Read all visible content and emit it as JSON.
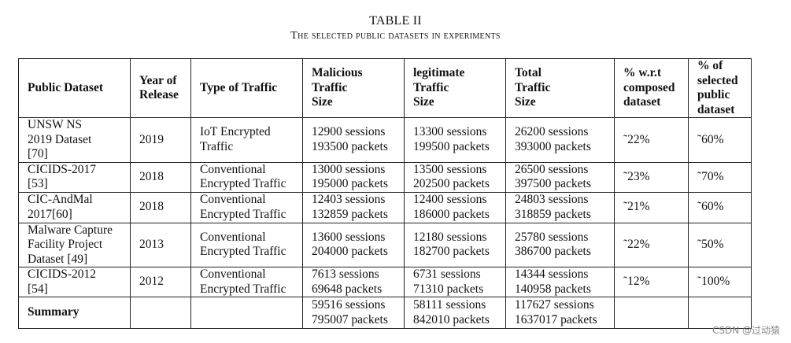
{
  "caption": {
    "title": "TABLE II",
    "subtitle": "The selected public datasets in experiments"
  },
  "headers": [
    [
      "Public Dataset"
    ],
    [
      "Year of",
      "Release"
    ],
    [
      "Type of Traffic"
    ],
    [
      "Malicious",
      "Traffic",
      "Size"
    ],
    [
      "legitimate",
      "Traffic",
      "Size"
    ],
    [
      "Total",
      "Traffic",
      "Size"
    ],
    [
      "% w.r.t",
      "composed",
      "dataset"
    ],
    [
      "% of",
      "selected",
      "public",
      "dataset"
    ]
  ],
  "rows": [
    {
      "dataset": [
        "UNSW NS",
        "2019 Dataset",
        "[70]"
      ],
      "year": "2019",
      "traffic": [
        "IoT Encrypted",
        "Traffic"
      ],
      "malicious": [
        "12900 sessions",
        "193500 packets"
      ],
      "legitimate": [
        "13300 sessions",
        "199500 packets"
      ],
      "total": [
        "26200 sessions",
        "393000 packets"
      ],
      "pct_composed": "˜22%",
      "pct_selected": "˜60%"
    },
    {
      "dataset": [
        "CICIDS-2017",
        "[53]"
      ],
      "year": "2018",
      "traffic": [
        "Conventional",
        "Encrypted Traffic"
      ],
      "malicious": [
        "13000 sessions",
        "195000 packets"
      ],
      "legitimate": [
        "13500 sessions",
        "202500 packets"
      ],
      "total": [
        "26500 sessions",
        "397500 packets"
      ],
      "pct_composed": "˜23%",
      "pct_selected": "˜70%"
    },
    {
      "dataset": [
        "CIC-AndMal",
        "2017[60]"
      ],
      "year": "2018",
      "traffic": [
        "Conventional",
        "Encrypted Traffic"
      ],
      "malicious": [
        "12403 sessions",
        "132859 packets"
      ],
      "legitimate": [
        "12400 sessions",
        "186000 packets"
      ],
      "total": [
        "24803 sessions",
        "318859 packets"
      ],
      "pct_composed": "˜21%",
      "pct_selected": "˜60%"
    },
    {
      "dataset": [
        "Malware Capture",
        "Facility Project",
        "Dataset [49]"
      ],
      "year": "2013",
      "traffic": [
        "Conventional",
        "Encrypted Traffic"
      ],
      "malicious": [
        "13600 sessions",
        "204000 packets"
      ],
      "legitimate": [
        "12180 sessions",
        "182700 packets"
      ],
      "total": [
        "25780 sessions",
        "386700 packets"
      ],
      "pct_composed": "˜22%",
      "pct_selected": "˜50%"
    },
    {
      "dataset": [
        "CICIDS-2012",
        "[54]"
      ],
      "year": "2012",
      "traffic": [
        "Conventional",
        "Encrypted Traffic"
      ],
      "malicious": [
        "7613 sessions",
        "69648 packets"
      ],
      "legitimate": [
        "6731 sessions",
        "71310 packets"
      ],
      "total": [
        "14344 sessions",
        "140958 packets"
      ],
      "pct_composed": "˜12%",
      "pct_selected": "˜100%"
    }
  ],
  "summary": {
    "label": "Summary",
    "malicious": [
      "59516 sessions",
      "795007 packets"
    ],
    "legitimate": [
      "58111 sessions",
      "842010 packets"
    ],
    "total": [
      "117627 sessions",
      "1637017 packets"
    ]
  },
  "watermark": "CSDN @过动猿"
}
